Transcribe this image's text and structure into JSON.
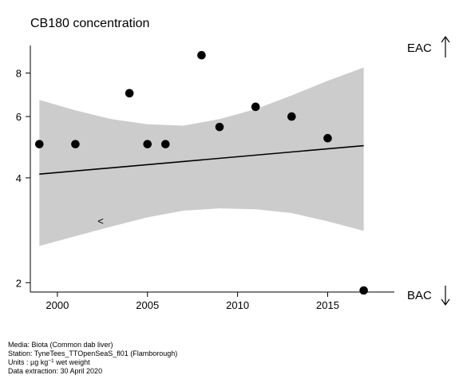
{
  "chart_data": {
    "type": "scatter",
    "title": "CB180 concentration",
    "xlabel": "",
    "ylabel": "",
    "x_scale": "linear",
    "y_scale": "log",
    "xlim": [
      1998.5,
      2018.7
    ],
    "ylim": [
      1.88,
      9.6
    ],
    "x_ticks": [
      2000,
      2005,
      2010,
      2015
    ],
    "y_ticks": [
      2,
      4,
      6,
      8
    ],
    "grid": false,
    "points": [
      {
        "x": 1999,
        "y": 5.0
      },
      {
        "x": 2001,
        "y": 5.0
      },
      {
        "x": 2004,
        "y": 7.0
      },
      {
        "x": 2005,
        "y": 5.0
      },
      {
        "x": 2006,
        "y": 5.0
      },
      {
        "x": 2008,
        "y": 9.0
      },
      {
        "x": 2009,
        "y": 5.6
      },
      {
        "x": 2011,
        "y": 6.4
      },
      {
        "x": 2013,
        "y": 6.0
      },
      {
        "x": 2015,
        "y": 5.2
      },
      {
        "x": 2017,
        "y": 1.9
      }
    ],
    "trend": {
      "x": [
        1999,
        2017
      ],
      "y": [
        4.1,
        4.95
      ]
    },
    "confidence_band": {
      "x": [
        1999,
        2001,
        2003,
        2005,
        2007,
        2009,
        2011,
        2013,
        2015,
        2017
      ],
      "lower": [
        2.55,
        2.72,
        2.9,
        3.08,
        3.22,
        3.27,
        3.25,
        3.17,
        3.0,
        2.82
      ],
      "upper": [
        6.7,
        6.25,
        5.9,
        5.7,
        5.65,
        5.9,
        6.3,
        6.9,
        7.6,
        8.3
      ]
    },
    "annotations": [
      {
        "text": "<",
        "x": 2002.4,
        "y": 3.0
      }
    ],
    "reference_lines": [
      {
        "label": "EAC",
        "direction": "up"
      },
      {
        "label": "BAC",
        "direction": "down"
      }
    ],
    "colors": {
      "band": "#cccccc",
      "points": "#000000",
      "line": "#000000"
    }
  },
  "footer": {
    "media": "Media: Biota (Common dab liver)",
    "station": "Station: TyneTees_TTOpenSeaS_fl01 (Flamborough)",
    "units_prefix": "Units : µg kg",
    "units_exp": "−1",
    "units_suffix": " wet weight",
    "extraction": "Data extraction: 30 April 2020"
  }
}
